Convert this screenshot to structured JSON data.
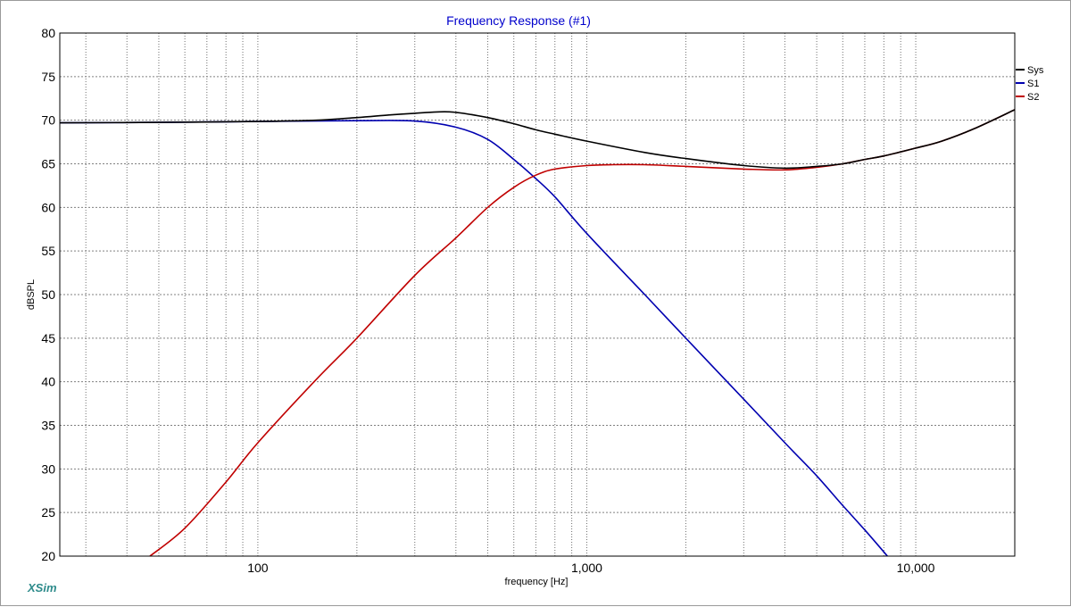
{
  "chart_data": {
    "type": "line",
    "title": "Frequency Response (#1)",
    "xlabel": "frequency [Hz]",
    "ylabel": "dBSPL",
    "x_scale": "log",
    "xlim": [
      25,
      20000
    ],
    "ylim": [
      20,
      80
    ],
    "x_ticks": [
      {
        "value": 100,
        "label": "100"
      },
      {
        "value": 1000,
        "label": "1,000"
      },
      {
        "value": 10000,
        "label": "10,000"
      }
    ],
    "y_ticks": [
      {
        "value": 20,
        "label": "20"
      },
      {
        "value": 25,
        "label": "25"
      },
      {
        "value": 30,
        "label": "30"
      },
      {
        "value": 35,
        "label": "35"
      },
      {
        "value": 40,
        "label": "40"
      },
      {
        "value": 45,
        "label": "45"
      },
      {
        "value": 50,
        "label": "50"
      },
      {
        "value": 55,
        "label": "55"
      },
      {
        "value": 60,
        "label": "60"
      },
      {
        "value": 65,
        "label": "65"
      },
      {
        "value": 70,
        "label": "70"
      },
      {
        "value": 75,
        "label": "75"
      },
      {
        "value": 80,
        "label": "80"
      }
    ],
    "grid": true,
    "legend_position": "right",
    "series": [
      {
        "name": "Sys",
        "color": "#000000",
        "points": [
          [
            25,
            69.7
          ],
          [
            50,
            69.75
          ],
          [
            100,
            69.85
          ],
          [
            150,
            70.0
          ],
          [
            200,
            70.3
          ],
          [
            250,
            70.6
          ],
          [
            300,
            70.8
          ],
          [
            350,
            70.95
          ],
          [
            400,
            70.9
          ],
          [
            500,
            70.3
          ],
          [
            600,
            69.6
          ],
          [
            700,
            68.9
          ],
          [
            800,
            68.4
          ],
          [
            1000,
            67.6
          ],
          [
            1500,
            66.3
          ],
          [
            2000,
            65.6
          ],
          [
            3000,
            64.8
          ],
          [
            4000,
            64.5
          ],
          [
            5000,
            64.7
          ],
          [
            6000,
            65.0
          ],
          [
            7000,
            65.5
          ],
          [
            8000,
            65.9
          ],
          [
            10000,
            66.8
          ],
          [
            12000,
            67.6
          ],
          [
            15000,
            69.0
          ],
          [
            20000,
            71.2
          ]
        ]
      },
      {
        "name": "S1",
        "color": "#0000b0",
        "points": [
          [
            25,
            69.7
          ],
          [
            50,
            69.75
          ],
          [
            100,
            69.85
          ],
          [
            200,
            69.95
          ],
          [
            300,
            69.9
          ],
          [
            400,
            69.2
          ],
          [
            500,
            67.8
          ],
          [
            600,
            65.5
          ],
          [
            700,
            63.3
          ],
          [
            800,
            61.2
          ],
          [
            1000,
            57.0
          ],
          [
            1500,
            50.0
          ],
          [
            2000,
            45.0
          ],
          [
            3000,
            38.0
          ],
          [
            4000,
            33.0
          ],
          [
            5000,
            29.2
          ],
          [
            6000,
            25.8
          ],
          [
            7000,
            23.0
          ],
          [
            8200,
            20.0
          ]
        ]
      },
      {
        "name": "S2",
        "color": "#c00000",
        "points": [
          [
            47,
            20.0
          ],
          [
            60,
            23.2
          ],
          [
            80,
            28.5
          ],
          [
            100,
            33.0
          ],
          [
            150,
            40.2
          ],
          [
            200,
            45.0
          ],
          [
            300,
            52.2
          ],
          [
            400,
            56.5
          ],
          [
            500,
            60.0
          ],
          [
            600,
            62.3
          ],
          [
            700,
            63.7
          ],
          [
            800,
            64.4
          ],
          [
            1000,
            64.8
          ],
          [
            1200,
            64.9
          ],
          [
            1500,
            64.9
          ],
          [
            2000,
            64.7
          ],
          [
            3000,
            64.4
          ],
          [
            4000,
            64.3
          ],
          [
            5000,
            64.6
          ],
          [
            6000,
            65.0
          ],
          [
            7000,
            65.5
          ],
          [
            8000,
            65.9
          ],
          [
            10000,
            66.8
          ],
          [
            12000,
            67.6
          ],
          [
            15000,
            69.0
          ],
          [
            20000,
            71.2
          ]
        ]
      }
    ]
  },
  "brand": "XSim"
}
